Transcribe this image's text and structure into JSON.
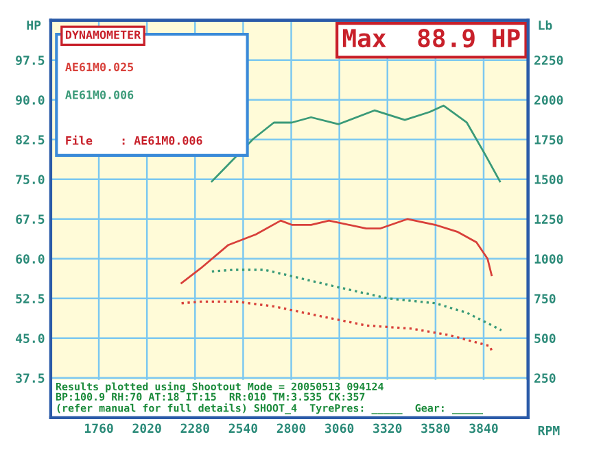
{
  "chart_data": {
    "type": "line",
    "title": "Max  88.9 HP",
    "xlabel": "RPM",
    "ylabel": "HP",
    "y2label": "Lb",
    "xlim": [
      1500,
      4080
    ],
    "xticks": [
      1760,
      2020,
      2280,
      2540,
      2800,
      3060,
      3320,
      3580,
      3840
    ],
    "ylim": [
      30.0,
      105.0
    ],
    "yticks": [
      37.5,
      {
        "value": 45,
        "label": "45.0"
      },
      52.5,
      {
        "value": 60,
        "label": "60.0"
      },
      67.5,
      {
        "value": 75,
        "label": "75.0"
      },
      82.5,
      {
        "value": 90,
        "label": "90.0"
      },
      97.5
    ],
    "y2lim": [
      0,
      2500
    ],
    "y2ticks": [
      250,
      500,
      750,
      1000,
      1250,
      1500,
      1750,
      2000,
      2250
    ],
    "grid": true,
    "marker": "none",
    "series": [
      {
        "name": "AE61M0.025",
        "color": "#d8403a",
        "line_style": "solid",
        "x": [
          2207,
          2311,
          2460,
          2609,
          2743,
          2803,
          2907,
          3004,
          3205,
          3280,
          3429,
          3578,
          3697,
          3801,
          3861,
          3883
        ],
        "values": [
          55.4,
          58.2,
          62.6,
          64.6,
          67.2,
          66.4,
          66.4,
          67.2,
          65.7,
          65.7,
          67.5,
          66.4,
          65.1,
          63.1,
          60.0,
          56.9
        ]
      },
      {
        "name": "AE61M0.006",
        "color": "#3a9a78",
        "line_style": "solid",
        "x": [
          2371,
          2594,
          2706,
          2803,
          2907,
          3056,
          3250,
          3414,
          3548,
          3623,
          3749,
          3846,
          3928
        ],
        "values": [
          74.6,
          82.6,
          85.7,
          85.7,
          86.7,
          85.4,
          88.0,
          86.2,
          87.7,
          88.9,
          85.7,
          79.8,
          74.6
        ]
      },
      {
        "color": "#3a9a78",
        "axis": "y2",
        "line_style": "dotted",
        "x": [
          2371,
          2483,
          2654,
          2803,
          3056,
          3324,
          3578,
          3749,
          3936
        ],
        "values": [
          920,
          930,
          930,
          890,
          820,
          750,
          720,
          660,
          550
        ]
      },
      {
        "color": "#d8403a",
        "axis": "y2",
        "line_style": "dotted",
        "x": [
          2207,
          2311,
          2505,
          2706,
          2952,
          3205,
          3451,
          3652,
          3875,
          3883
        ],
        "values": [
          720,
          730,
          730,
          700,
          640,
          580,
          560,
          520,
          450,
          420
        ]
      }
    ],
    "annotations": [
      "DYNAMOMETER",
      "File    : AE61M0.006",
      "Results plotted using Shootout Mode = 20050513 094124",
      "BP:100.9 RH:70 AT:18 IT:15  RR:010 TM:3.535 CK:357",
      "(refer manual for full details) SHOOT_4  TyrePres: _____  Gear: _____"
    ]
  }
}
